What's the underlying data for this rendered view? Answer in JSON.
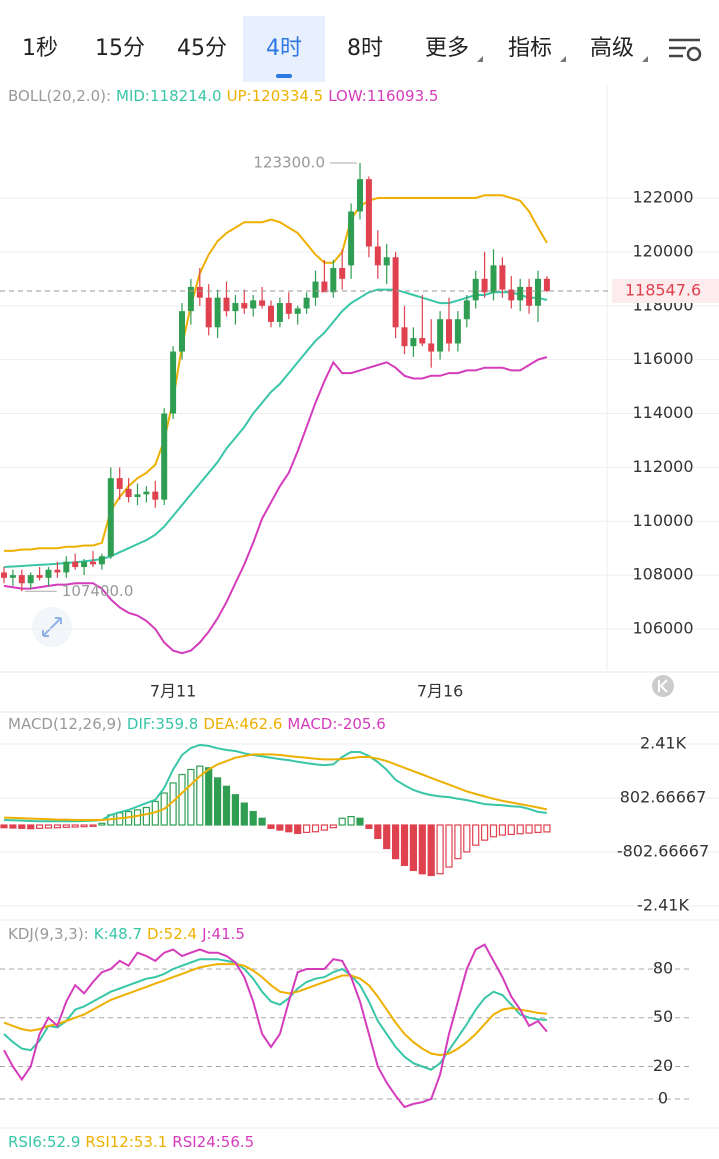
{
  "tabs": [
    "1秒",
    "15分",
    "45分",
    "4时",
    "8时",
    "更多",
    "指标",
    "高级"
  ],
  "chart_data": [
    {
      "type": "candlestick",
      "title": "BOLL(20,2.0):",
      "categories": [
        null,
        null,
        null,
        null,
        null,
        null,
        null,
        null,
        null,
        null,
        null,
        null,
        null,
        null,
        null,
        null,
        null,
        null,
        null,
        "7月11",
        null,
        null,
        null,
        null,
        null,
        null,
        null,
        null,
        null,
        null,
        null,
        null,
        null,
        null,
        null,
        null,
        null,
        null,
        null,
        null,
        null,
        null,
        null,
        null,
        null,
        null,
        null,
        null,
        null,
        "7月16",
        null,
        null,
        null,
        null,
        null,
        null,
        null,
        null,
        null,
        null,
        null,
        null
      ],
      "open": [
        108100,
        107900,
        108000,
        107700,
        108000,
        107900,
        108200,
        108100,
        108500,
        108300,
        108500,
        108400,
        108700,
        111600,
        111200,
        110900,
        111000,
        111100,
        110800,
        114000,
        116300,
        117800,
        118700,
        118300,
        117200,
        118300,
        117800,
        118100,
        117900,
        118200,
        118000,
        117400,
        118100,
        117700,
        117900,
        118300,
        118900,
        118500,
        119400,
        119500,
        121500,
        122700,
        120200,
        119500,
        119800,
        117200,
        116500,
        116800,
        116600,
        116300,
        117500,
        116600,
        117500,
        118200,
        119000,
        118500,
        119500,
        118600,
        118200,
        118700,
        118000,
        119000
      ],
      "high": [
        108300,
        108200,
        108200,
        108100,
        108300,
        108300,
        108500,
        108700,
        108800,
        108600,
        108900,
        108800,
        112000,
        112000,
        111600,
        111400,
        111300,
        111500,
        114200,
        116500,
        118100,
        119000,
        119400,
        118800,
        118600,
        118900,
        118400,
        118600,
        118400,
        118700,
        118200,
        118300,
        118500,
        118000,
        118500,
        119300,
        119700,
        119700,
        120100,
        121800,
        123300,
        122800,
        120800,
        120300,
        120000,
        118000,
        117200,
        118400,
        117500,
        117800,
        118300,
        117800,
        118400,
        119300,
        120000,
        120100,
        119800,
        119100,
        119000,
        119000,
        119300,
        119100
      ],
      "low": [
        107700,
        107600,
        107400,
        107500,
        107800,
        107600,
        107900,
        107900,
        108200,
        108000,
        108300,
        108200,
        108600,
        110800,
        110700,
        110600,
        110700,
        110500,
        110600,
        113800,
        116000,
        117300,
        118000,
        116900,
        116800,
        117600,
        117300,
        117700,
        117600,
        117900,
        117200,
        117200,
        117500,
        117300,
        117700,
        118000,
        118600,
        118300,
        118600,
        119000,
        121200,
        119800,
        119000,
        118800,
        116800,
        116200,
        116100,
        116500,
        115700,
        116000,
        116300,
        116300,
        117200,
        117900,
        118300,
        118200,
        118300,
        117900,
        117800,
        117700,
        117400,
        118500
      ],
      "close": [
        107900,
        108000,
        107700,
        108000,
        107900,
        108200,
        108100,
        108500,
        108300,
        108500,
        108400,
        108700,
        111600,
        111200,
        110900,
        111000,
        111100,
        110800,
        114000,
        116300,
        117800,
        118700,
        118300,
        117200,
        118300,
        117800,
        118100,
        117900,
        118200,
        118000,
        117400,
        118100,
        117700,
        117900,
        118300,
        118900,
        118500,
        119400,
        119000,
        121500,
        122700,
        120200,
        119500,
        119800,
        117200,
        116500,
        116800,
        116600,
        116300,
        117500,
        116600,
        117500,
        118200,
        119000,
        118500,
        119500,
        118600,
        118200,
        118700,
        118000,
        119000,
        118547.6
      ],
      "up_color": "#2f9e52",
      "down_color": "#e0414f",
      "series": [
        {
          "label": "MID:118214.0",
          "color": "#39c6a8",
          "values": [
            108300,
            108320,
            108340,
            108360,
            108380,
            108400,
            108420,
            108450,
            108480,
            108510,
            108550,
            108600,
            108700,
            108850,
            109000,
            109150,
            109300,
            109500,
            109800,
            110200,
            110600,
            111000,
            111400,
            111800,
            112200,
            112700,
            113100,
            113500,
            114000,
            114400,
            114800,
            115100,
            115500,
            115900,
            116300,
            116700,
            117000,
            117400,
            117800,
            118100,
            118300,
            118500,
            118600,
            118600,
            118600,
            118500,
            118400,
            118300,
            118200,
            118100,
            118100,
            118200,
            118300,
            118400,
            118400,
            118500,
            118500,
            118500,
            118400,
            118300,
            118300,
            118214
          ]
        },
        {
          "label": "UP:120334.5",
          "color": "#eeb000",
          "values": [
            108900,
            108900,
            108950,
            108950,
            109000,
            109000,
            109000,
            109050,
            109050,
            109100,
            109100,
            109200,
            110400,
            110900,
            111300,
            111600,
            111800,
            112100,
            113000,
            114500,
            116500,
            118000,
            119200,
            119900,
            120400,
            120700,
            120900,
            121100,
            121100,
            121100,
            121200,
            121100,
            120900,
            120700,
            120300,
            119900,
            119600,
            119600,
            120000,
            121200,
            121700,
            121900,
            122000,
            122000,
            122000,
            122000,
            122000,
            122000,
            122000,
            122000,
            122000,
            122000,
            122000,
            122000,
            122100,
            122100,
            122100,
            122000,
            121900,
            121500,
            120900,
            120334.5
          ]
        },
        {
          "label": "LOW:116093.5",
          "color": "#d53cbc",
          "values": [
            107600,
            107550,
            107500,
            107500,
            107550,
            107600,
            107650,
            107650,
            107700,
            107700,
            107700,
            107500,
            107100,
            106800,
            106600,
            106500,
            106300,
            106000,
            105500,
            105200,
            105100,
            105200,
            105500,
            105900,
            106400,
            107000,
            107700,
            108400,
            109200,
            110100,
            110700,
            111300,
            111800,
            112600,
            113500,
            114400,
            115200,
            115900,
            115500,
            115500,
            115600,
            115700,
            115800,
            115900,
            115700,
            115400,
            115300,
            115300,
            115400,
            115400,
            115500,
            115500,
            115600,
            115600,
            115700,
            115700,
            115700,
            115600,
            115600,
            115800,
            116000,
            116093.5
          ]
        }
      ],
      "ylim": [
        104478,
        126195
      ],
      "yticks": [
        106000,
        108000,
        110000,
        112000,
        114000,
        116000,
        118000,
        120000,
        122000
      ],
      "last_price": 118547.6,
      "annotations": [
        {
          "value": 123300,
          "label": "123300.0"
        },
        {
          "value": 107400,
          "label": "107400.0"
        }
      ],
      "grid": true
    },
    {
      "type": "macd",
      "title": "MACD(12,26,9)",
      "hist": {
        "label": "MACD:-205.6",
        "color": "#d53cbc",
        "values": [
          -80,
          -90,
          -100,
          -110,
          -100,
          -90,
          -80,
          -70,
          -60,
          -50,
          -40,
          50,
          300,
          360,
          400,
          450,
          520,
          700,
          950,
          1250,
          1500,
          1650,
          1750,
          1700,
          1400,
          1150,
          900,
          650,
          400,
          200,
          -100,
          -150,
          -200,
          -250,
          -220,
          -200,
          -150,
          -80,
          200,
          250,
          200,
          -100,
          -400,
          -700,
          -1000,
          -1200,
          -1350,
          -1450,
          -1500,
          -1450,
          -1250,
          -1000,
          -800,
          -600,
          -450,
          -350,
          -300,
          -280,
          -260,
          -240,
          -220,
          -205.6
        ]
      },
      "series": [
        {
          "label": "DIF:359.8",
          "color": "#39c6a8",
          "values": [
            150,
            140,
            130,
            120,
            110,
            110,
            110,
            110,
            110,
            120,
            130,
            150,
            300,
            380,
            450,
            550,
            650,
            750,
            1100,
            1650,
            2080,
            2290,
            2380,
            2350,
            2280,
            2230,
            2200,
            2130,
            2080,
            2040,
            2000,
            1960,
            1930,
            1880,
            1840,
            1800,
            1780,
            1800,
            2020,
            2170,
            2170,
            2050,
            1870,
            1640,
            1340,
            1180,
            1040,
            950,
            890,
            850,
            830,
            780,
            740,
            680,
            620,
            600,
            590,
            560,
            540,
            480,
            390,
            359.8
          ]
        },
        {
          "label": "DEA:462.6",
          "color": "#eeb000",
          "values": [
            220,
            210,
            200,
            190,
            180,
            170,
            160,
            160,
            150,
            150,
            150,
            150,
            170,
            200,
            230,
            270,
            320,
            380,
            480,
            700,
            950,
            1200,
            1450,
            1650,
            1800,
            1900,
            2000,
            2050,
            2100,
            2100,
            2100,
            2080,
            2050,
            2020,
            2000,
            1970,
            1950,
            1950,
            1960,
            1990,
            2020,
            2020,
            1970,
            1900,
            1800,
            1700,
            1600,
            1500,
            1400,
            1300,
            1200,
            1100,
            1000,
            920,
            850,
            780,
            720,
            670,
            620,
            570,
            520,
            462.6
          ]
        }
      ],
      "ylim": [
        -2824,
        3359
      ],
      "yticks": [
        {
          "value": -2408,
          "label": "-2.41K"
        },
        -802.66667,
        802.66667,
        {
          "value": 2408,
          "label": "2.41K"
        }
      ],
      "grid": true
    },
    {
      "type": "kdj",
      "title": "KDJ(9,3,3):",
      "series": [
        {
          "label": "K:48.7",
          "color": "#39c6a8",
          "values": [
            40,
            35,
            31,
            30,
            36,
            45,
            44,
            48,
            55,
            57,
            60,
            63,
            66,
            68,
            70,
            72,
            74,
            75,
            77,
            80,
            82,
            84,
            86,
            86,
            86,
            85,
            84,
            80,
            74,
            66,
            60,
            58,
            62,
            68,
            72,
            74,
            75,
            78,
            80,
            76,
            70,
            60,
            48,
            40,
            32,
            26,
            22,
            20,
            18,
            22,
            30,
            38,
            46,
            55,
            62,
            66,
            64,
            58,
            52,
            50,
            49,
            48.7
          ]
        },
        {
          "label": "D:52.4",
          "color": "#eeb000",
          "values": [
            47,
            45,
            43,
            42,
            43,
            45,
            46,
            48,
            50,
            52,
            55,
            58,
            61,
            63,
            65,
            67,
            69,
            71,
            73,
            75,
            77,
            79,
            81,
            82,
            83,
            83,
            83,
            82,
            79,
            75,
            70,
            66,
            65,
            66,
            68,
            70,
            72,
            74,
            76,
            76,
            74,
            70,
            63,
            55,
            47,
            40,
            35,
            31,
            28,
            27,
            28,
            31,
            35,
            40,
            46,
            52,
            55,
            56,
            55,
            54,
            53,
            52.4
          ]
        },
        {
          "label": "J:41.5",
          "color": "#d53cbc",
          "values": [
            30,
            20,
            12,
            20,
            40,
            50,
            45,
            60,
            70,
            65,
            72,
            78,
            80,
            85,
            82,
            90,
            88,
            85,
            90,
            92,
            88,
            90,
            92,
            90,
            90,
            88,
            84,
            75,
            60,
            40,
            32,
            40,
            60,
            78,
            80,
            80,
            80,
            86,
            85,
            75,
            60,
            40,
            20,
            10,
            2,
            -5,
            -3,
            -2,
            0,
            15,
            40,
            60,
            80,
            92,
            95,
            85,
            75,
            63,
            55,
            45,
            48,
            41.5
          ]
        }
      ],
      "ylim": [
        -17.85,
        110.15
      ],
      "yticks": [
        0,
        20,
        50,
        80
      ],
      "grid": true
    }
  ],
  "rsi": [
    {
      "label": "RSI6:52.9",
      "color": "#39c6a8"
    },
    {
      "label": "RSI12:53.1",
      "color": "#eeb000"
    },
    {
      "label": "RSI24:56.5",
      "color": "#d53cbc"
    }
  ]
}
